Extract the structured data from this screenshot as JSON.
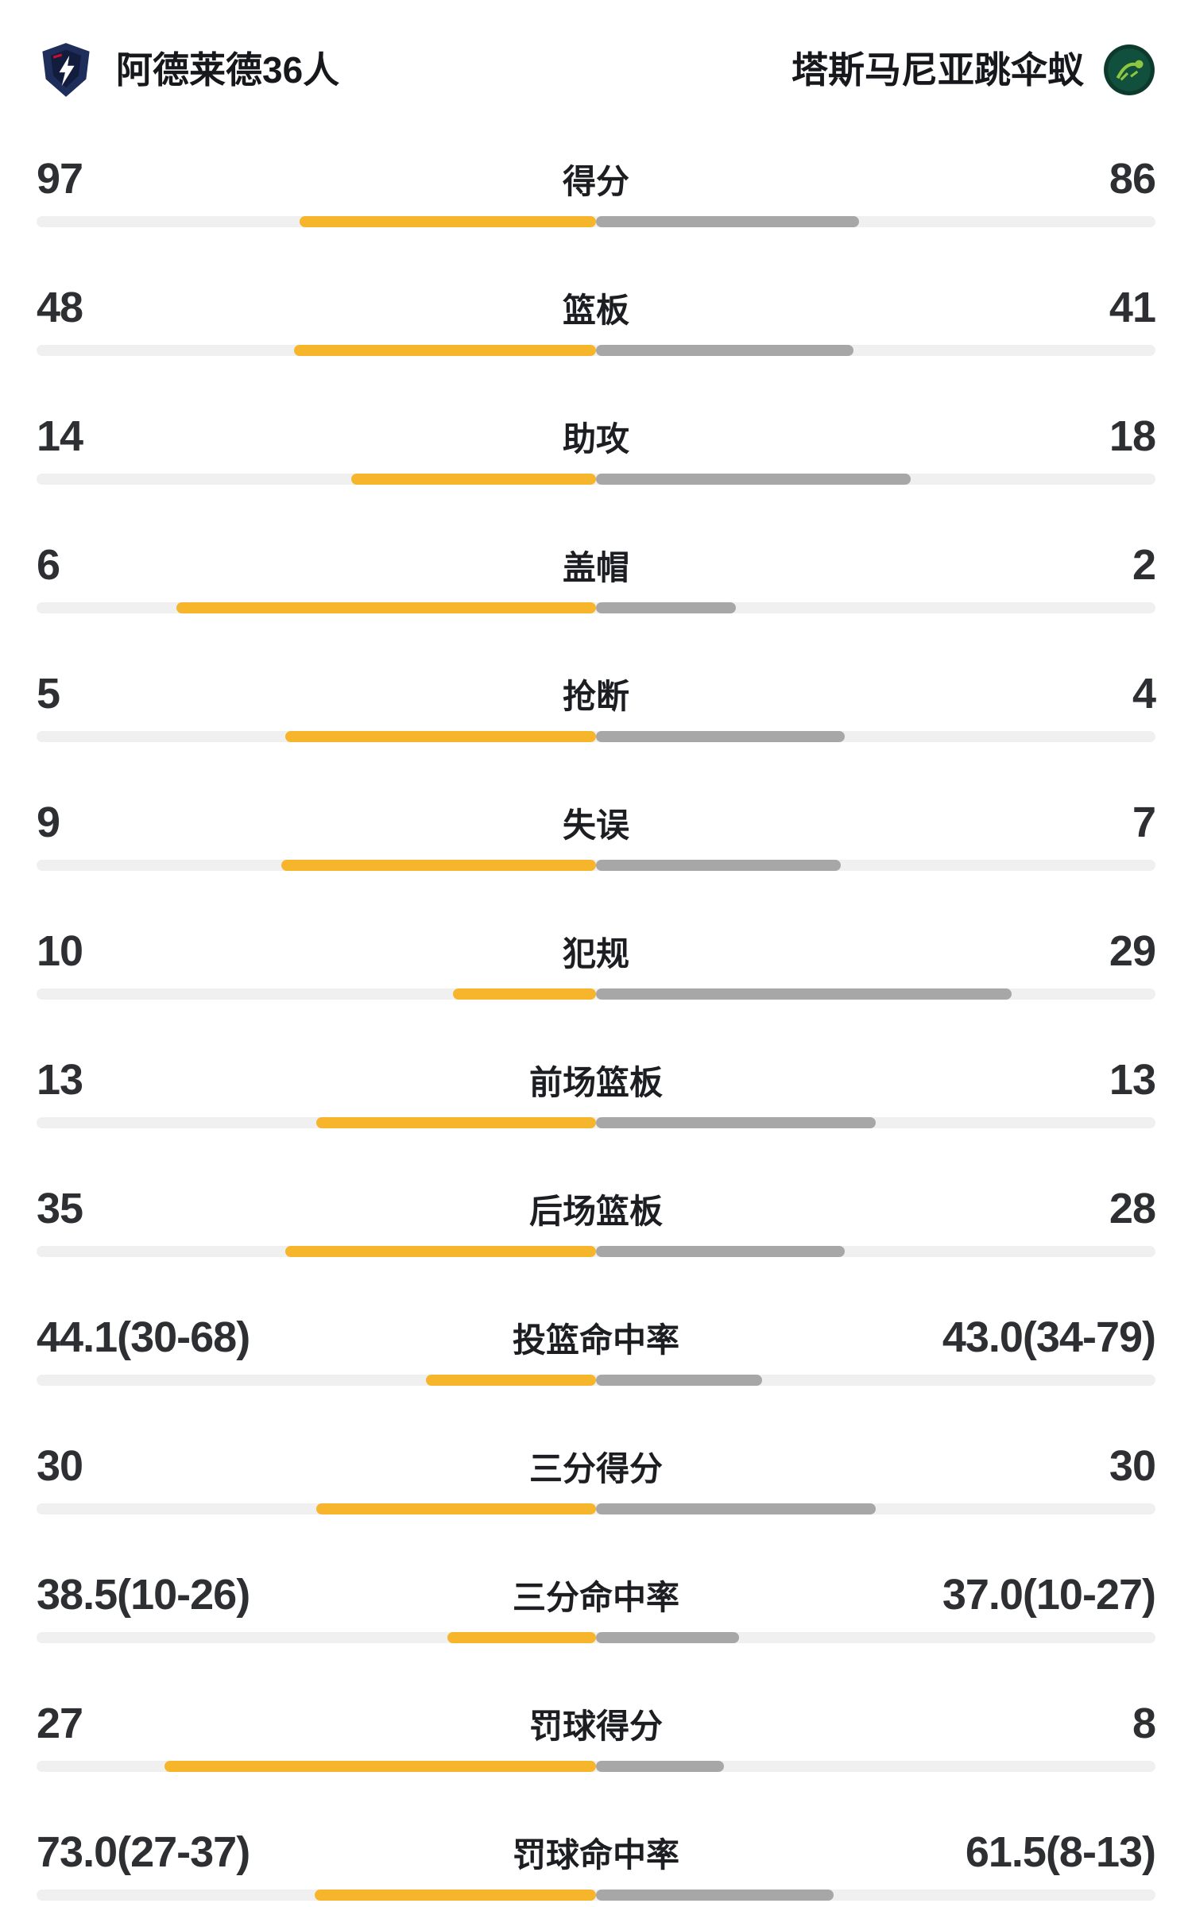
{
  "header": {
    "home_team": "阿德莱德36人",
    "away_team": "塔斯马尼亚跳伞蚁",
    "home_logo": "adelaide-36ers-logo",
    "away_logo": "tasmania-jackjumpers-logo"
  },
  "colors": {
    "home_bar": "#f7b52c",
    "away_bar": "#a7a7a7",
    "track": "#f0f0f0",
    "background": "#ffffff",
    "text_values": "#2e2f33",
    "text_labels": "#1d1e22",
    "home_logo_navy": "#1e2d5a",
    "away_logo_green": "#0d3a2d"
  },
  "chart_data": {
    "type": "bar",
    "orientation": "horizontal-paired-from-center",
    "title": "",
    "legend_position": "header",
    "grid": false,
    "categories": [
      "得分",
      "篮板",
      "助攻",
      "盖帽",
      "抢断",
      "失误",
      "犯规",
      "前场篮板",
      "后场篮板",
      "投篮命中率",
      "三分得分",
      "三分命中率",
      "罚球得分",
      "罚球命中率"
    ],
    "row_types": [
      "count",
      "count",
      "count",
      "count",
      "count",
      "count",
      "count",
      "count",
      "count",
      "percent",
      "count",
      "percent",
      "count",
      "percent"
    ],
    "series": [
      {
        "name": "阿德莱德36人",
        "color": "#f7b52c",
        "display": [
          "97",
          "48",
          "14",
          "6",
          "5",
          "9",
          "10",
          "13",
          "35",
          "44.1(30-68)",
          "30",
          "38.5(10-26)",
          "27",
          "73.0(27-37)"
        ],
        "values": [
          97,
          48,
          14,
          6,
          5,
          9,
          10,
          13,
          35,
          44.1,
          30,
          38.5,
          27,
          73.0
        ]
      },
      {
        "name": "塔斯马尼亚跳伞蚁",
        "color": "#a7a7a7",
        "display": [
          "86",
          "41",
          "18",
          "2",
          "4",
          "7",
          "29",
          "13",
          "28",
          "43.0(34-79)",
          "30",
          "37.0(10-27)",
          "8",
          "61.5(8-13)"
        ],
        "values": [
          86,
          41,
          18,
          2,
          4,
          7,
          29,
          13,
          28,
          43.0,
          30,
          37.0,
          8,
          61.5
        ]
      }
    ]
  }
}
